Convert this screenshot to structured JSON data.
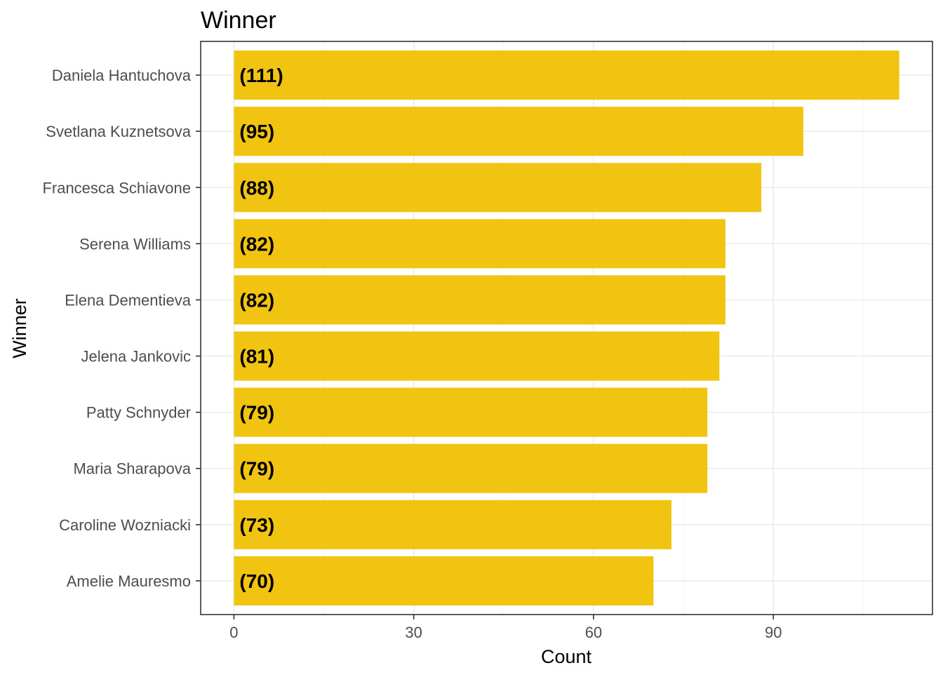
{
  "chart_data": {
    "type": "bar",
    "orientation": "horizontal",
    "title": "Winner",
    "xlabel": "Count",
    "ylabel": "Winner",
    "categories": [
      "Daniela Hantuchova",
      "Svetlana Kuznetsova",
      "Francesca Schiavone",
      "Serena Williams",
      "Elena Dementieva",
      "Jelena Jankovic",
      "Patty Schnyder",
      "Maria Sharapova",
      "Caroline Wozniacki",
      "Amelie Mauresmo"
    ],
    "values": [
      111,
      95,
      88,
      82,
      82,
      81,
      79,
      79,
      73,
      70
    ],
    "data_labels": [
      "(111)",
      "(95)",
      "(88)",
      "(82)",
      "(82)",
      "(81)",
      "(79)",
      "(79)",
      "(73)",
      "(70)"
    ],
    "x_ticks": [
      0,
      30,
      60,
      90
    ],
    "xlim": [
      -5.55,
      116.55
    ],
    "bar_color": "#F0C410",
    "grid": true,
    "legend": "none"
  }
}
